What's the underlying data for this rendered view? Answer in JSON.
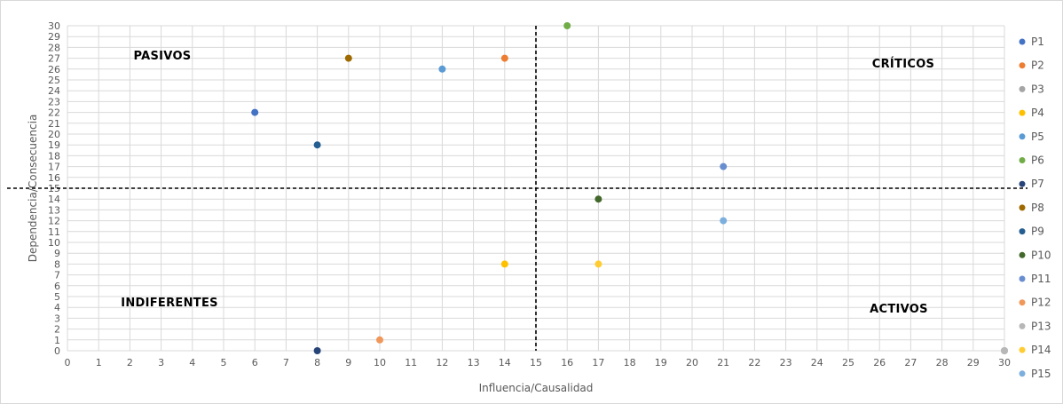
{
  "chart_data": {
    "type": "scatter",
    "xlabel": "Influencia/Causalidad",
    "ylabel": "Dependencia/Consecuencia",
    "xlim": [
      0,
      30
    ],
    "ylim": [
      0,
      30
    ],
    "x_ticks": [
      0,
      1,
      2,
      3,
      4,
      5,
      6,
      7,
      8,
      9,
      10,
      11,
      12,
      13,
      14,
      15,
      16,
      17,
      18,
      19,
      20,
      21,
      22,
      23,
      24,
      25,
      26,
      27,
      28,
      29,
      30
    ],
    "y_ticks": [
      0,
      1,
      2,
      3,
      4,
      5,
      6,
      7,
      8,
      9,
      10,
      11,
      12,
      13,
      14,
      15,
      16,
      17,
      18,
      19,
      20,
      21,
      22,
      23,
      24,
      25,
      26,
      27,
      28,
      29,
      30
    ],
    "grid": true,
    "legend_position": "right",
    "threshold_lines": {
      "x": 15,
      "y": 15
    },
    "quadrant_labels": [
      {
        "text": "PASIVOS",
        "quadrant": "top-left"
      },
      {
        "text": "CRÍTICOS",
        "quadrant": "top-right"
      },
      {
        "text": "INDIFERENTES",
        "quadrant": "bottom-left"
      },
      {
        "text": "ACTIVOS",
        "quadrant": "bottom-right"
      }
    ],
    "series": [
      {
        "name": "P1",
        "x": 6,
        "y": 22,
        "color": "#4472c4"
      },
      {
        "name": "P2",
        "x": 14,
        "y": 27,
        "color": "#ed7d31"
      },
      {
        "name": "P3",
        "x": 30,
        "y": 0,
        "color": "#a5a5a5"
      },
      {
        "name": "P4",
        "x": 14,
        "y": 8,
        "color": "#ffc000"
      },
      {
        "name": "P5",
        "x": 12,
        "y": 26,
        "color": "#5b9bd5"
      },
      {
        "name": "P6",
        "x": 16,
        "y": 30,
        "color": "#70ad47"
      },
      {
        "name": "P7",
        "x": 8,
        "y": 0,
        "color": "#264478"
      },
      {
        "name": "P8",
        "x": 9,
        "y": 27,
        "color": "#9e6a00"
      },
      {
        "name": "P9",
        "x": 8,
        "y": 19,
        "color": "#255e91"
      },
      {
        "name": "P10",
        "x": 17,
        "y": 14,
        "color": "#43682b"
      },
      {
        "name": "P11",
        "x": 21,
        "y": 17,
        "color": "#698ed0"
      },
      {
        "name": "P12",
        "x": 10,
        "y": 1,
        "color": "#f1975a"
      },
      {
        "name": "P13",
        "x": 30,
        "y": 0,
        "color": "#b7b7b7"
      },
      {
        "name": "P14",
        "x": 17,
        "y": 8,
        "color": "#ffcd33"
      },
      {
        "name": "P15",
        "x": 21,
        "y": 12,
        "color": "#7cafdd"
      }
    ]
  }
}
